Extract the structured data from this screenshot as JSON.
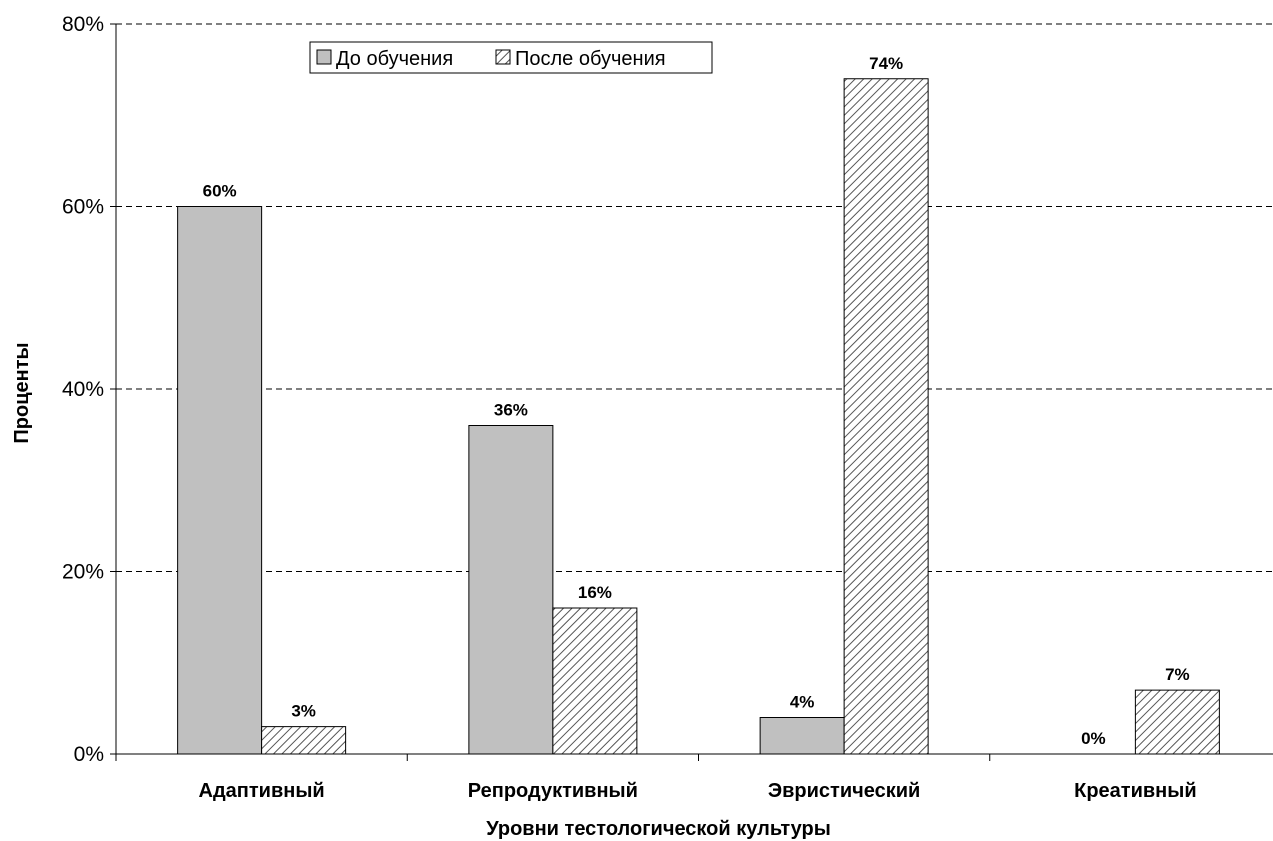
{
  "chart_data": {
    "type": "bar",
    "categories": [
      "Адаптивный",
      "Репродуктивный",
      "Эвристический",
      "Креативный"
    ],
    "series": [
      {
        "name": "До обучения",
        "values": [
          60,
          36,
          4,
          0
        ],
        "labels": [
          "60%",
          "36%",
          "4%",
          "0%"
        ],
        "color": "#c0c0c0",
        "pattern": "solid"
      },
      {
        "name": "После обучения",
        "values": [
          3,
          16,
          74,
          7
        ],
        "labels": [
          "3%",
          "16%",
          "74%",
          "7%"
        ],
        "color": "#ffffff",
        "pattern": "diagonal-hatch"
      }
    ],
    "xlabel": "Уровни тестологической культуры",
    "ylabel": "Проценты",
    "ylim": [
      0,
      80
    ],
    "yticks": [
      0,
      20,
      40,
      60,
      80
    ],
    "ytick_labels": [
      "0%",
      "20%",
      "40%",
      "60%",
      "80%"
    ],
    "grid": "horizontal-dashed",
    "legend": "top-center"
  }
}
